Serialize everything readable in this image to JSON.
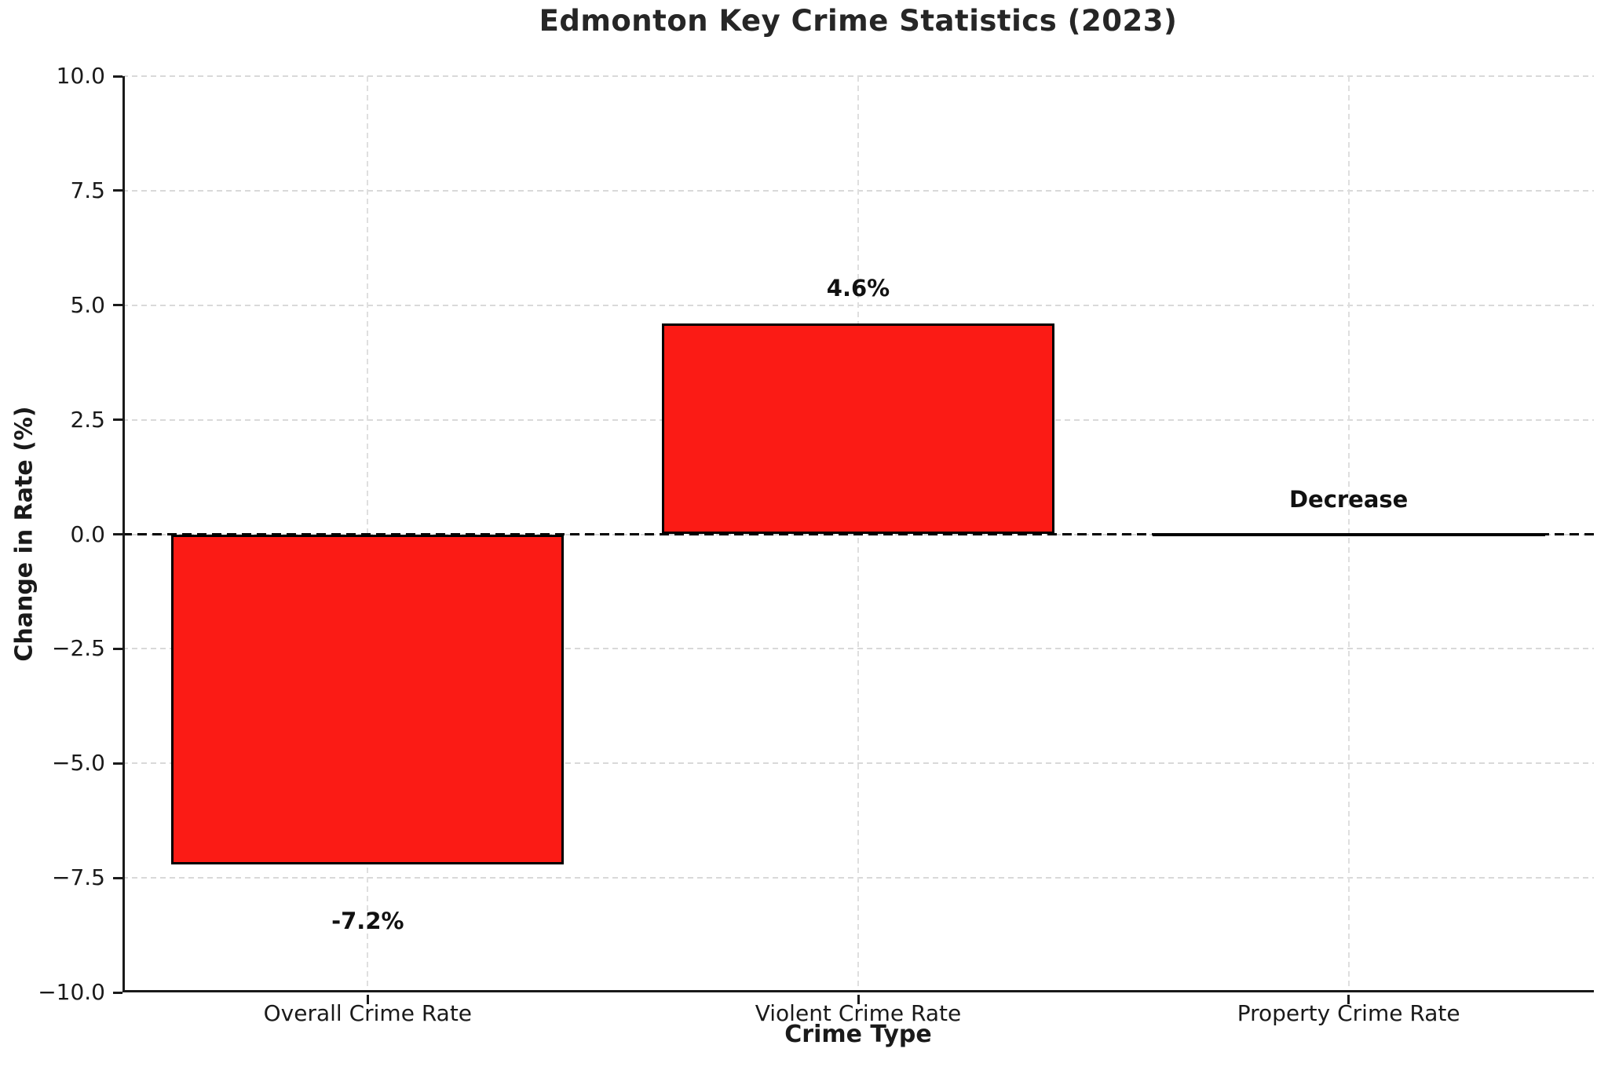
{
  "chart_data": {
    "type": "bar",
    "title": "Edmonton Key Crime Statistics (2023)",
    "xlabel": "Crime Type",
    "ylabel": "Change in Rate (%)",
    "categories": [
      "Overall Crime Rate",
      "Violent Crime Rate",
      "Property Crime Rate"
    ],
    "values": [
      -7.2,
      4.6,
      0.0
    ],
    "bar_labels": [
      "-7.2%",
      "4.6%",
      "Decrease"
    ],
    "bar_label_positions": [
      "below-bar",
      "above-bar",
      "above-baseline"
    ],
    "ylim": [
      -10.0,
      10.0
    ],
    "yticks": [
      -10.0,
      -7.5,
      -5.0,
      -2.5,
      0.0,
      2.5,
      5.0,
      7.5,
      10.0
    ],
    "ytick_labels": [
      "−10.0",
      "−7.5",
      "−5.0",
      "−2.5",
      "0.0",
      "2.5",
      "5.0",
      "7.5",
      "10.0"
    ],
    "grid": true,
    "grid_style": "dashed",
    "legend_position": "none",
    "zero_line_style": "dashed",
    "zero_line_color": "#000000",
    "bar_color": "#fb1b15",
    "bar_edge_color": "#000000",
    "bar_width_fraction": 0.8
  }
}
